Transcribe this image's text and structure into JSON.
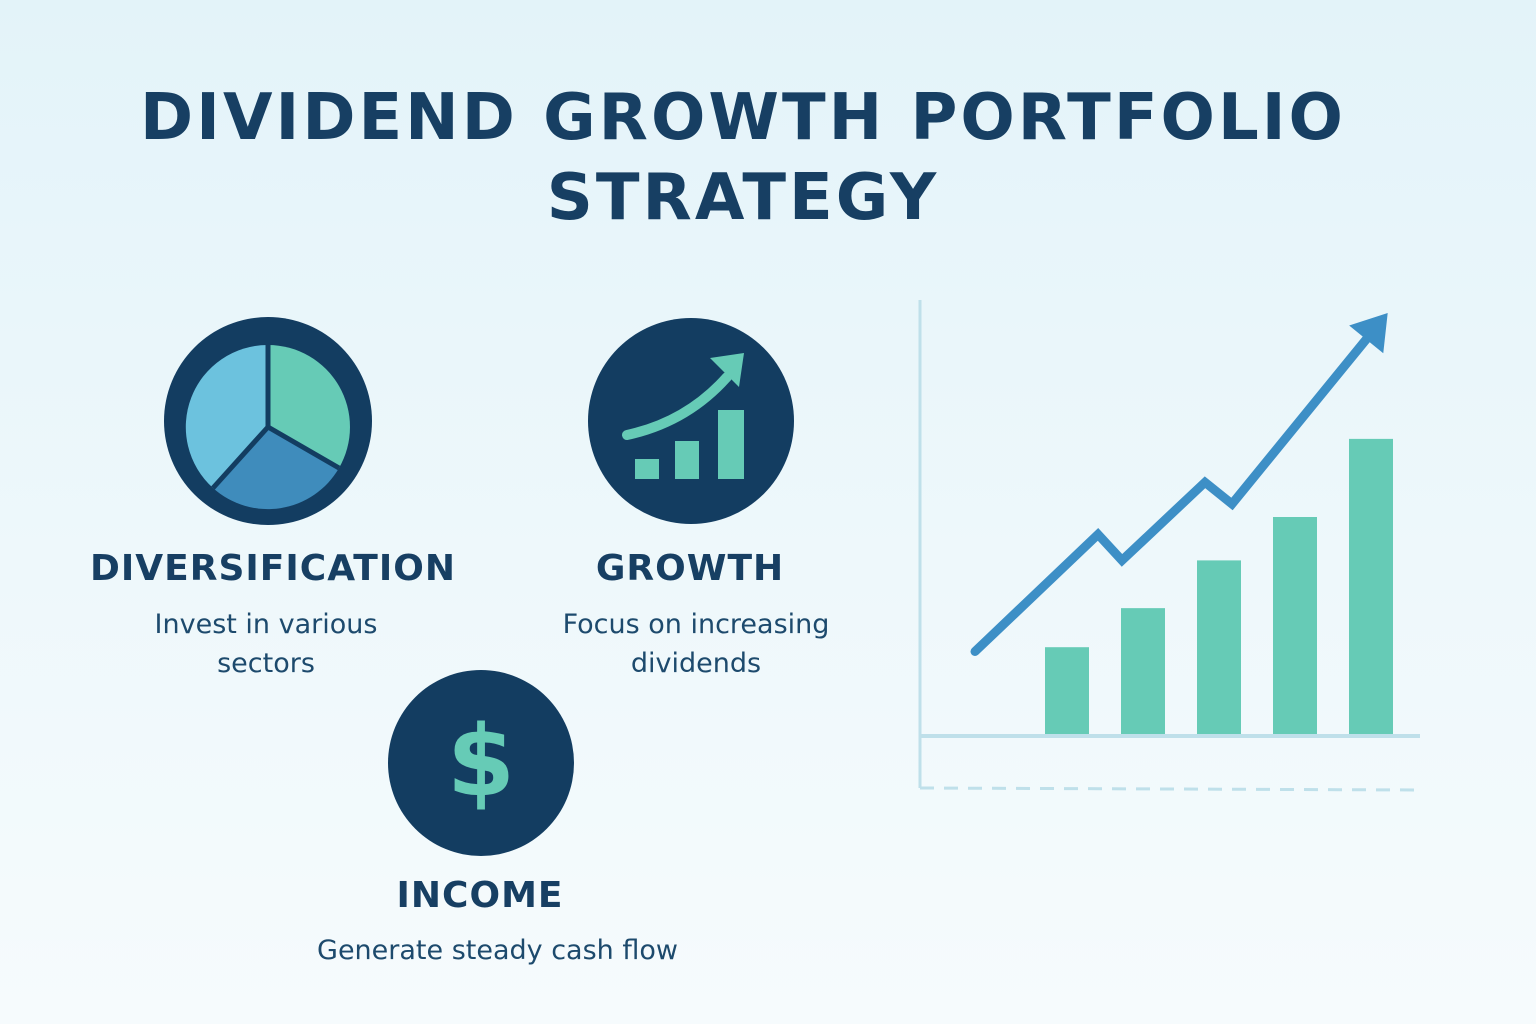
{
  "title": {
    "line1": "DIVIDEND GROWTH PORTFOLIO",
    "line2": "STRATEGY"
  },
  "features": {
    "diversification": {
      "name": "DIVERSIFICATION",
      "desc_line1": "Invest in various",
      "desc_line2": "sectors",
      "icon": "pie-chart-icon"
    },
    "growth": {
      "name": "GROWTH",
      "desc_line1": "Focus on increasing",
      "desc_line2": "dividends",
      "icon": "growth-bars-arrow-icon"
    },
    "income": {
      "name": "INCOME",
      "desc_line1": "Generate steady cash flow",
      "icon": "dollar-sign-icon"
    }
  },
  "colors": {
    "navy": "#133d61",
    "teal": "#66cbb6",
    "blue": "#3d8fc6",
    "light_blue": "#6cc2de",
    "mid_blue": "#3f8cbc",
    "background": "#e8f5fa"
  },
  "chart_data": {
    "type": "bar",
    "categories": [
      "",
      "",
      "",
      "",
      ""
    ],
    "values": [
      2.0,
      2.9,
      4.0,
      5.0,
      6.8
    ],
    "trend_line": [
      1.9,
      4.6,
      4.0,
      5.8,
      5.3,
      9.2
    ],
    "xlabel": "",
    "ylabel": "",
    "ylim": [
      0,
      10
    ],
    "grid": false,
    "legend": "none"
  }
}
